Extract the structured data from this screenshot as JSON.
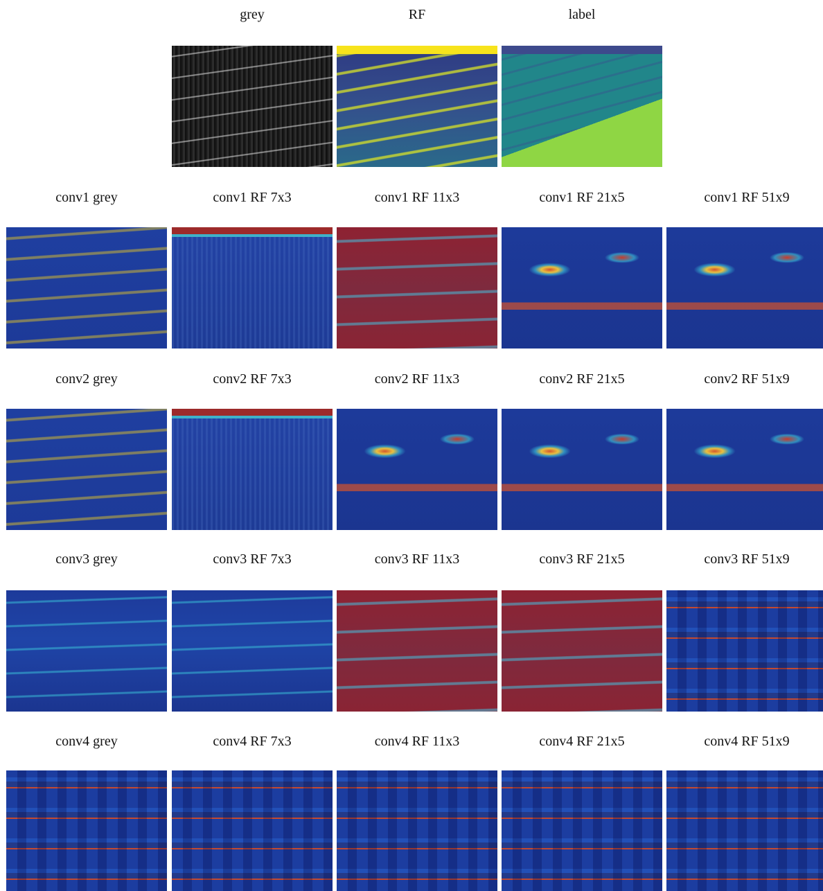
{
  "top_row": {
    "labels": [
      "grey",
      "RF",
      "label"
    ]
  },
  "rows": [
    {
      "labels": [
        "conv1 grey",
        "conv1 RF 7x3",
        "conv1 RF 11x3",
        "conv1 RF 21x5",
        "conv1 RF 51x9"
      ]
    },
    {
      "labels": [
        "conv2 grey",
        "conv2 RF 7x3",
        "conv2 RF 11x3",
        "conv2 RF 21x5",
        "conv2 RF 51x9"
      ]
    },
    {
      "labels": [
        "conv3 grey",
        "conv3 RF 7x3",
        "conv3 RF 11x3",
        "conv3 RF 21x5",
        "conv3 RF 51x9"
      ]
    },
    {
      "labels": [
        "conv4 grey",
        "conv4 RF 7x3",
        "conv4 RF 11x3",
        "conv4 RF 21x5",
        "conv4 RF 51x9"
      ]
    }
  ]
}
